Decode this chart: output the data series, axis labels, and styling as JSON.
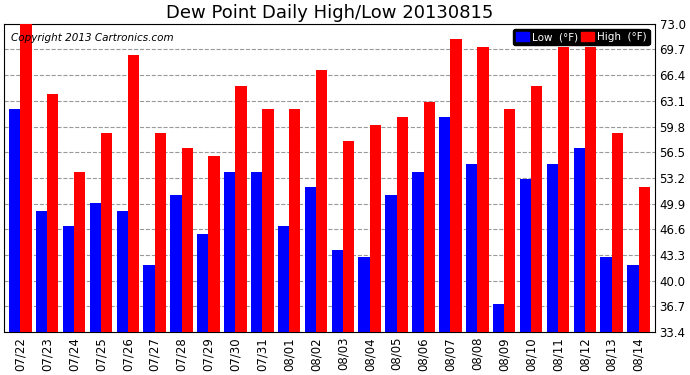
{
  "title": "Dew Point Daily High/Low 20130815",
  "copyright": "Copyright 2013 Cartronics.com",
  "ylim": [
    33.4,
    73.0
  ],
  "yticks": [
    33.4,
    36.7,
    40.0,
    43.3,
    46.6,
    49.9,
    53.2,
    56.5,
    59.8,
    63.1,
    66.4,
    69.7,
    73.0
  ],
  "categories": [
    "07/22",
    "07/23",
    "07/24",
    "07/25",
    "07/26",
    "07/27",
    "07/28",
    "07/29",
    "07/30",
    "07/31",
    "08/01",
    "08/02",
    "08/03",
    "08/04",
    "08/05",
    "08/06",
    "08/07",
    "08/08",
    "08/09",
    "08/10",
    "08/11",
    "08/12",
    "08/13",
    "08/14"
  ],
  "low_values": [
    62,
    49,
    47,
    50,
    49,
    42,
    51,
    46,
    54,
    54,
    47,
    52,
    44,
    43,
    51,
    54,
    61,
    55,
    37,
    53,
    55,
    57,
    43,
    42
  ],
  "high_values": [
    73,
    64,
    54,
    59,
    69,
    59,
    57,
    56,
    65,
    62,
    62,
    67,
    58,
    60,
    61,
    63,
    71,
    70,
    62,
    65,
    70,
    70,
    59,
    52
  ],
  "ybase": 33.4,
  "low_color": "#0000ff",
  "high_color": "#ff0000",
  "bg_color": "#ffffff",
  "grid_color": "#999999",
  "title_fontsize": 13,
  "tick_fontsize": 8.5,
  "copyright_fontsize": 7.5,
  "legend_low_label": "Low  (°F)",
  "legend_high_label": "High  (°F)"
}
